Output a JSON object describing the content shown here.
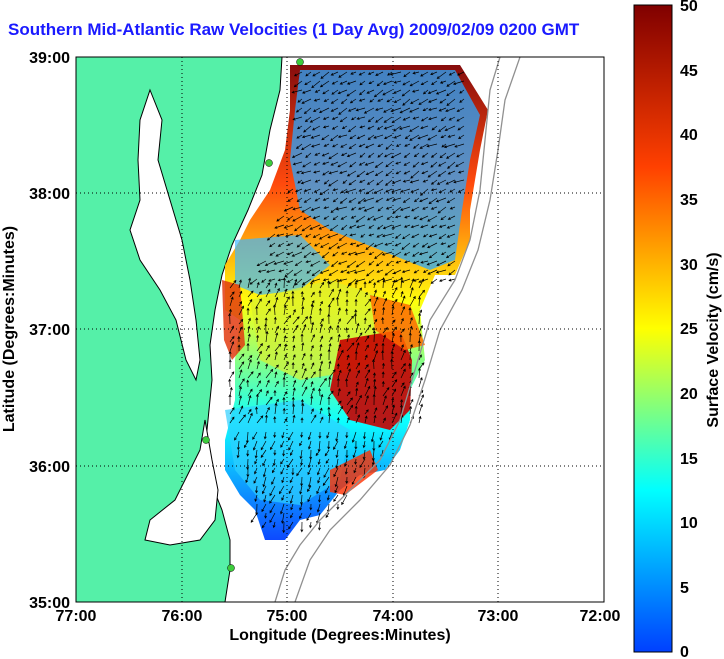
{
  "title": "Southern Mid-Atlantic Raw Velocities (1 Day Avg) 2009/02/09 0200 GMT",
  "map": {
    "xlabel": "Longitude (Degrees:Minutes)",
    "ylabel": "Latitude (Degrees:Minutes)",
    "x_ticks": [
      "77:00",
      "76:00",
      "75:00",
      "74:00",
      "73:00",
      "72:00"
    ],
    "y_ticks": [
      "39:00",
      "38:00",
      "37:00",
      "36:00",
      "35:00"
    ],
    "land_color": "#55f0a8",
    "coast_color": "#000000",
    "grid": "dotted"
  },
  "colorbar": {
    "label": "Surface Velocity (cm/s)",
    "ticks": [
      "50",
      "45",
      "40",
      "35",
      "30",
      "25",
      "20",
      "15",
      "10",
      "5",
      "0"
    ],
    "min": 0,
    "max": 50,
    "colormap": "jet"
  }
}
